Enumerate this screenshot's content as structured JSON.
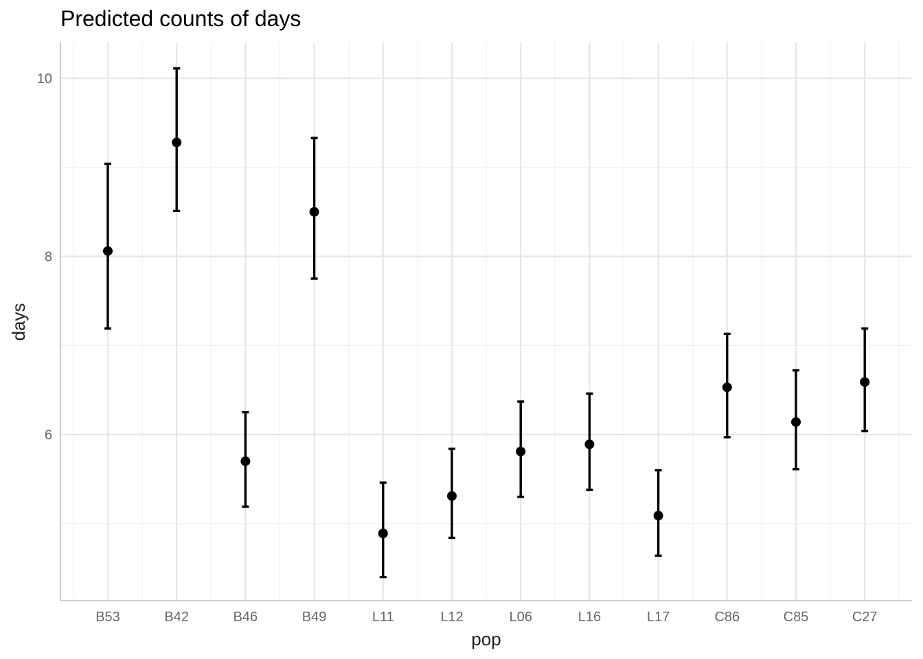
{
  "chart_data": {
    "type": "scatter",
    "title": "Predicted counts of days",
    "xlabel": "pop",
    "ylabel": "days",
    "categories": [
      "B53",
      "B42",
      "B46",
      "B49",
      "L11",
      "L12",
      "L06",
      "L16",
      "L17",
      "C86",
      "C85",
      "C27"
    ],
    "values": [
      8.06,
      9.28,
      5.7,
      8.5,
      4.89,
      5.31,
      5.81,
      5.89,
      5.09,
      6.53,
      6.14,
      6.59
    ],
    "lower": [
      7.19,
      8.51,
      5.19,
      7.75,
      4.4,
      4.84,
      5.3,
      5.38,
      4.64,
      5.97,
      5.61,
      6.04
    ],
    "upper": [
      9.04,
      10.11,
      6.25,
      9.33,
      5.46,
      5.84,
      6.37,
      6.46,
      5.6,
      7.13,
      6.72,
      7.19
    ],
    "yticks": [
      6,
      8,
      10
    ],
    "ylim": [
      4.2,
      10.4
    ],
    "grid": true,
    "colors": {
      "mark": "#000000",
      "grid": "#e6e6e6"
    }
  }
}
